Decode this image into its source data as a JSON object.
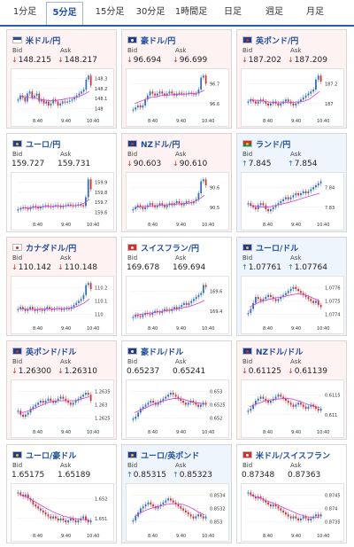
{
  "tabs": [
    {
      "label": "1分足",
      "active": false
    },
    {
      "label": "5分足",
      "active": true
    },
    {
      "label": "15分足",
      "active": false
    },
    {
      "label": "30分足",
      "active": false
    },
    {
      "label": "1時間足",
      "active": false
    },
    {
      "label": "日足",
      "active": false
    },
    {
      "label": "週足",
      "active": false
    },
    {
      "label": "月足",
      "active": false
    }
  ],
  "labels": {
    "bid": "Bid",
    "ask": "Ask"
  },
  "colors": {
    "up_candle": "#2e6ec4",
    "down_candle": "#d0302f",
    "ma_line": "#d43fd2",
    "down_bg": "#fff2f2",
    "up_bg": "#eef5fd"
  },
  "cards": [
    {
      "pair": "米ドル/円",
      "flag": "us",
      "dir": "down",
      "bid": "148.215",
      "ask": "148.217",
      "ticks": [
        "148.3",
        "148.2",
        "148.1",
        "148"
      ],
      "times": [
        "8:40",
        "9:40",
        "10:40"
      ],
      "trend": [
        0.35,
        0.45,
        0.4,
        0.3,
        0.5,
        0.55,
        0.4,
        0.45,
        0.5,
        0.3,
        0.35,
        0.25,
        0.3,
        0.2,
        0.25,
        0.35,
        0.3,
        0.2,
        0.25,
        0.3,
        0.28,
        0.3,
        0.32,
        0.35,
        0.4,
        0.45,
        0.5,
        0.55,
        0.6,
        0.85,
        0.95,
        0.7
      ],
      "ma": [
        0.45,
        0.42,
        0.4,
        0.38,
        0.35,
        0.33,
        0.32,
        0.33,
        0.35,
        0.38,
        0.4,
        0.42,
        0.48,
        0.55
      ]
    },
    {
      "pair": "豪ドル/円",
      "flag": "au",
      "dir": "down",
      "bid": "96.694",
      "ask": "96.699",
      "ticks": [
        "96.7",
        "96.6"
      ],
      "times": [
        "8:40",
        "9:40",
        "10:40"
      ],
      "trend": [
        0.1,
        0.15,
        0.2,
        0.15,
        0.2,
        0.35,
        0.45,
        0.55,
        0.5,
        0.45,
        0.5,
        0.55,
        0.5,
        0.45,
        0.5,
        0.55,
        0.5,
        0.45,
        0.5,
        0.52,
        0.5,
        0.48,
        0.5,
        0.52,
        0.5,
        0.48,
        0.5,
        0.6,
        0.9,
        0.95,
        0.75
      ],
      "ma": [
        0.25,
        0.3,
        0.35,
        0.4,
        0.42,
        0.45,
        0.46,
        0.47,
        0.48,
        0.48,
        0.49,
        0.5,
        0.52,
        0.58
      ]
    },
    {
      "pair": "英ポンド/円",
      "flag": "uk",
      "dir": "down",
      "bid": "187.202",
      "ask": "187.209",
      "ticks": [
        "187.2",
        "187"
      ],
      "times": [
        "8:40",
        "9:40",
        "10:40"
      ],
      "trend": [
        0.3,
        0.35,
        0.3,
        0.25,
        0.3,
        0.35,
        0.3,
        0.25,
        0.2,
        0.25,
        0.3,
        0.25,
        0.2,
        0.25,
        0.3,
        0.35,
        0.3,
        0.25,
        0.2,
        0.25,
        0.3,
        0.35,
        0.4,
        0.45,
        0.5,
        0.55,
        0.6,
        0.85,
        0.95,
        0.8
      ],
      "ma": [
        0.35,
        0.33,
        0.32,
        0.3,
        0.28,
        0.27,
        0.27,
        0.28,
        0.28,
        0.29,
        0.3,
        0.35,
        0.45,
        0.55
      ]
    },
    {
      "pair": "ユーロ/円",
      "flag": "eu",
      "dir": "flat",
      "bid": "159.727",
      "ask": "159.731",
      "ticks": [
        "159.9",
        "159.8",
        "159.7",
        "159.6"
      ],
      "times": [
        "8:40",
        "9:40",
        "10:40"
      ],
      "trend": [
        0.2,
        0.22,
        0.25,
        0.22,
        0.2,
        0.25,
        0.28,
        0.25,
        0.22,
        0.25,
        0.28,
        0.3,
        0.28,
        0.25,
        0.28,
        0.3,
        0.28,
        0.25,
        0.28,
        0.3,
        0.32,
        0.3,
        0.28,
        0.3,
        0.32,
        0.3,
        0.28,
        0.5,
        0.95,
        0.7
      ],
      "ma": [
        0.22,
        0.23,
        0.24,
        0.25,
        0.26,
        0.27,
        0.27,
        0.28,
        0.28,
        0.29,
        0.29,
        0.3,
        0.35,
        0.45
      ]
    },
    {
      "pair": "NZドル/円",
      "flag": "nz",
      "dir": "down",
      "bid": "90.603",
      "ask": "90.610",
      "ticks": [
        "90.6",
        "90.5"
      ],
      "times": [
        "8:40",
        "9:40",
        "10:40"
      ],
      "trend": [
        0.2,
        0.25,
        0.3,
        0.25,
        0.2,
        0.25,
        0.3,
        0.35,
        0.3,
        0.25,
        0.3,
        0.35,
        0.3,
        0.25,
        0.3,
        0.35,
        0.3,
        0.35,
        0.4,
        0.35,
        0.3,
        0.35,
        0.4,
        0.38,
        0.35,
        0.4,
        0.45,
        0.6,
        0.9,
        0.95,
        0.8
      ],
      "ma": [
        0.25,
        0.26,
        0.27,
        0.28,
        0.29,
        0.3,
        0.31,
        0.32,
        0.33,
        0.34,
        0.35,
        0.38,
        0.45,
        0.55
      ]
    },
    {
      "pair": "ランド/円",
      "flag": "za",
      "dir": "up",
      "bid": "7.845",
      "ask": "7.854",
      "ticks": [
        "7.84",
        "7.83"
      ],
      "times": [
        "8:40",
        "9:40",
        "10:40"
      ],
      "trend": [
        0.35,
        0.3,
        0.25,
        0.2,
        0.3,
        0.35,
        0.3,
        0.2,
        0.15,
        0.2,
        0.25,
        0.3,
        0.35,
        0.4,
        0.45,
        0.5,
        0.45,
        0.5,
        0.55,
        0.6,
        0.55,
        0.6,
        0.65,
        0.6,
        0.65,
        0.7,
        0.75,
        0.8,
        0.85,
        0.9
      ],
      "ma": [
        0.3,
        0.28,
        0.26,
        0.25,
        0.27,
        0.3,
        0.33,
        0.36,
        0.4,
        0.44,
        0.48,
        0.52,
        0.56,
        0.6
      ]
    },
    {
      "pair": "カナダドル/円",
      "flag": "ca",
      "dir": "down",
      "bid": "110.142",
      "ask": "110.148",
      "ticks": [
        "110.2",
        "110.1",
        "110"
      ],
      "times": [
        "8:40",
        "9:40",
        "10:40"
      ],
      "trend": [
        0.3,
        0.35,
        0.3,
        0.25,
        0.3,
        0.35,
        0.3,
        0.25,
        0.3,
        0.28,
        0.25,
        0.3,
        0.35,
        0.3,
        0.28,
        0.3,
        0.32,
        0.3,
        0.28,
        0.3,
        0.32,
        0.3,
        0.35,
        0.4,
        0.45,
        0.5,
        0.55,
        0.65,
        0.9,
        0.95,
        0.8
      ],
      "ma": [
        0.3,
        0.3,
        0.29,
        0.29,
        0.3,
        0.3,
        0.3,
        0.31,
        0.31,
        0.32,
        0.33,
        0.38,
        0.45,
        0.55
      ]
    },
    {
      "pair": "スイスフラン/円",
      "flag": "ch",
      "dir": "flat",
      "bid": "169.678",
      "ask": "169.694",
      "ticks": [
        "169.6",
        "169.4"
      ],
      "times": [
        "8:40",
        "9:40",
        "10:40"
      ],
      "trend": [
        0.1,
        0.15,
        0.12,
        0.1,
        0.15,
        0.2,
        0.18,
        0.15,
        0.2,
        0.25,
        0.22,
        0.2,
        0.25,
        0.3,
        0.28,
        0.25,
        0.3,
        0.35,
        0.3,
        0.35,
        0.4,
        0.45,
        0.4,
        0.45,
        0.5,
        0.55,
        0.6,
        0.65,
        0.7,
        0.9,
        0.85
      ],
      "ma": [
        0.15,
        0.16,
        0.18,
        0.2,
        0.22,
        0.24,
        0.26,
        0.28,
        0.3,
        0.33,
        0.36,
        0.4,
        0.45,
        0.52
      ]
    },
    {
      "pair": "ユーロ/ドル",
      "flag": "eu",
      "dir": "up",
      "bid": "1.07761",
      "ask": "1.07764",
      "ticks": [
        "1.0776",
        "1.0775",
        "1.0774"
      ],
      "times": [
        "8:40",
        "9:40",
        "10:40"
      ],
      "trend": [
        0.2,
        0.3,
        0.45,
        0.6,
        0.55,
        0.5,
        0.55,
        0.6,
        0.65,
        0.6,
        0.55,
        0.5,
        0.55,
        0.6,
        0.65,
        0.7,
        0.75,
        0.8,
        0.85,
        0.8,
        0.75,
        0.7,
        0.65,
        0.6,
        0.55,
        0.5,
        0.45,
        0.5,
        0.4,
        0.35
      ],
      "ma": [
        0.35,
        0.42,
        0.48,
        0.52,
        0.55,
        0.58,
        0.6,
        0.63,
        0.66,
        0.68,
        0.66,
        0.62,
        0.56,
        0.5
      ]
    },
    {
      "pair": "英ポンド/ドル",
      "flag": "uk",
      "dir": "down",
      "bid": "1.26300",
      "ask": "1.26310",
      "ticks": [
        "1.2635",
        "1.263",
        "1.2625"
      ],
      "times": [
        "8:40",
        "9:40",
        "10:40"
      ],
      "trend": [
        0.35,
        0.25,
        0.2,
        0.25,
        0.3,
        0.4,
        0.45,
        0.5,
        0.55,
        0.6,
        0.55,
        0.6,
        0.65,
        0.6,
        0.55,
        0.6,
        0.65,
        0.7,
        0.65,
        0.6,
        0.55,
        0.5,
        0.55,
        0.6,
        0.65,
        0.7,
        0.75,
        0.8,
        0.75,
        0.6
      ],
      "ma": [
        0.3,
        0.32,
        0.36,
        0.42,
        0.48,
        0.54,
        0.58,
        0.6,
        0.6,
        0.6,
        0.6,
        0.62,
        0.66,
        0.7
      ]
    },
    {
      "pair": "豪ドル/ドル",
      "flag": "au",
      "dir": "flat",
      "bid": "0.65237",
      "ask": "0.65241",
      "ticks": [
        "0.653",
        "0.6525",
        "0.652"
      ],
      "times": [
        "8:40",
        "9:40",
        "10:40"
      ],
      "trend": [
        0.15,
        0.2,
        0.3,
        0.4,
        0.45,
        0.5,
        0.55,
        0.6,
        0.55,
        0.5,
        0.55,
        0.6,
        0.65,
        0.7,
        0.75,
        0.8,
        0.75,
        0.7,
        0.65,
        0.6,
        0.55,
        0.5,
        0.55,
        0.6,
        0.55,
        0.5,
        0.45,
        0.5,
        0.55,
        0.5
      ],
      "ma": [
        0.3,
        0.36,
        0.42,
        0.48,
        0.53,
        0.58,
        0.62,
        0.65,
        0.66,
        0.64,
        0.6,
        0.56,
        0.54,
        0.52
      ]
    },
    {
      "pair": "NZドル/ドル",
      "flag": "nz",
      "dir": "down",
      "bid": "0.61125",
      "ask": "0.61139",
      "ticks": [
        "0.6115",
        "0.611"
      ],
      "times": [
        "8:40",
        "9:40",
        "10:40"
      ],
      "trend": [
        0.35,
        0.4,
        0.5,
        0.6,
        0.65,
        0.7,
        0.65,
        0.6,
        0.55,
        0.6,
        0.65,
        0.7,
        0.75,
        0.7,
        0.65,
        0.6,
        0.55,
        0.5,
        0.45,
        0.5,
        0.55,
        0.5,
        0.45,
        0.4,
        0.45,
        0.5,
        0.45,
        0.4,
        0.35,
        0.4
      ],
      "ma": [
        0.45,
        0.5,
        0.55,
        0.6,
        0.62,
        0.64,
        0.65,
        0.66,
        0.64,
        0.6,
        0.55,
        0.5,
        0.46,
        0.43
      ]
    },
    {
      "pair": "ユーロ/豪ドル",
      "flag": "eu",
      "dir": "flat",
      "bid": "1.65175",
      "ask": "1.65189",
      "ticks": [
        "1.652",
        "1.651"
      ],
      "times": [
        "8:40",
        "9:40",
        "10:40"
      ],
      "trend": [
        0.9,
        0.85,
        0.8,
        0.85,
        0.75,
        0.7,
        0.6,
        0.55,
        0.5,
        0.45,
        0.4,
        0.35,
        0.3,
        0.25,
        0.3,
        0.25,
        0.2,
        0.25,
        0.2,
        0.15,
        0.2,
        0.25,
        0.2,
        0.15,
        0.2,
        0.25,
        0.3,
        0.2,
        0.15,
        0.2
      ],
      "ma": [
        0.85,
        0.8,
        0.74,
        0.66,
        0.58,
        0.5,
        0.43,
        0.37,
        0.32,
        0.28,
        0.25,
        0.23,
        0.22,
        0.21
      ]
    },
    {
      "pair": "ユーロ/英ポンド",
      "flag": "eu",
      "dir": "up",
      "bid": "0.85315",
      "ask": "0.85323",
      "ticks": [
        "0.8534",
        "0.8532",
        "0.853"
      ],
      "times": [
        "8:40",
        "9:40",
        "10:40"
      ],
      "trend": [
        0.2,
        0.3,
        0.4,
        0.5,
        0.55,
        0.6,
        0.65,
        0.6,
        0.55,
        0.5,
        0.55,
        0.6,
        0.65,
        0.7,
        0.75,
        0.7,
        0.65,
        0.6,
        0.55,
        0.5,
        0.45,
        0.4,
        0.35,
        0.3,
        0.25,
        0.3,
        0.35,
        0.3,
        0.25,
        0.3
      ],
      "ma": [
        0.3,
        0.38,
        0.45,
        0.5,
        0.54,
        0.57,
        0.6,
        0.62,
        0.62,
        0.6,
        0.55,
        0.48,
        0.4,
        0.34
      ]
    },
    {
      "pair": "米ドル/スイスフラン",
      "flag": "ch",
      "dir": "flat",
      "bid": "0.87348",
      "ask": "0.87363",
      "ticks": [
        "0.8745",
        "0.874",
        "0.8735"
      ],
      "times": [
        "8:40",
        "9:40",
        "10:40"
      ],
      "trend": [
        0.9,
        0.85,
        0.8,
        0.75,
        0.8,
        0.75,
        0.7,
        0.65,
        0.6,
        0.55,
        0.6,
        0.55,
        0.5,
        0.45,
        0.4,
        0.35,
        0.3,
        0.25,
        0.3,
        0.25,
        0.2,
        0.25,
        0.3,
        0.25,
        0.2,
        0.25,
        0.3,
        0.35,
        0.3,
        0.35
      ],
      "ma": [
        0.85,
        0.8,
        0.75,
        0.7,
        0.65,
        0.6,
        0.54,
        0.48,
        0.42,
        0.36,
        0.32,
        0.28,
        0.27,
        0.28
      ]
    }
  ]
}
